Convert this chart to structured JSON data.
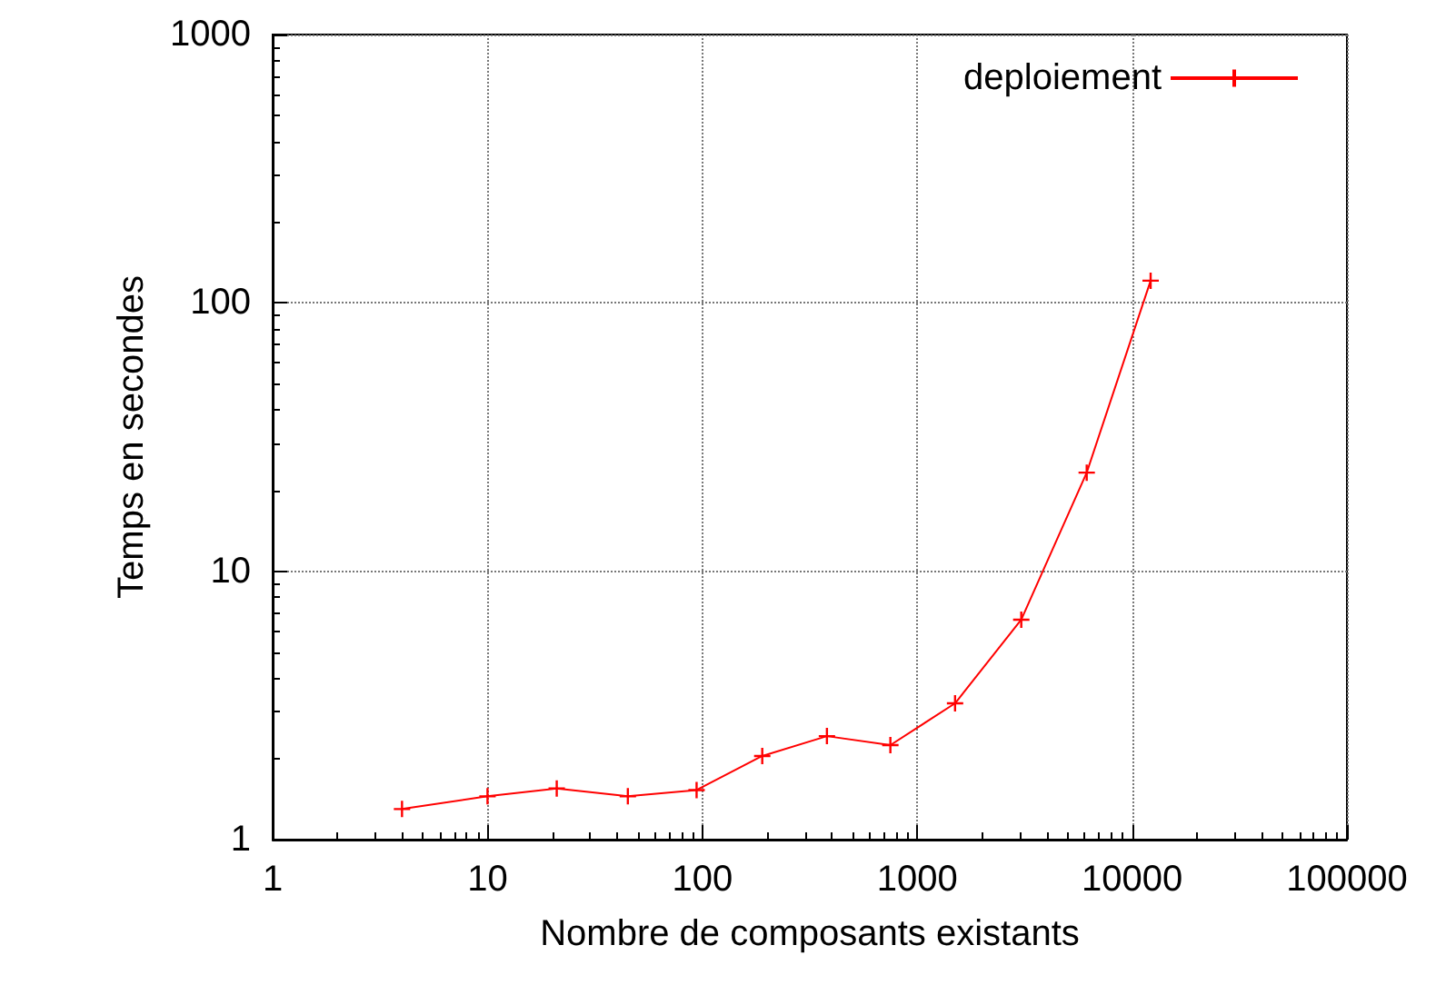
{
  "chart_data": {
    "type": "line",
    "xlabel": "Nombre de composants existants",
    "ylabel": "Temps en secondes",
    "log": "xy",
    "grid": true,
    "legend": "top right",
    "marker": "cross",
    "line_style": "solid",
    "xlim": [
      1,
      100000
    ],
    "xticks": [
      1,
      10,
      100,
      1000,
      10000,
      100000
    ],
    "ylim": [
      1,
      1000
    ],
    "yticks": [
      1,
      10,
      100,
      1000
    ],
    "series": [
      {
        "name": "deploiement",
        "color": "#ff0000",
        "x": [
          4,
          10,
          21,
          45,
          94,
          190,
          380,
          750,
          1500,
          3050,
          6150,
          12200
        ],
        "values": [
          1.3,
          1.45,
          1.55,
          1.45,
          1.53,
          2.05,
          2.43,
          2.25,
          3.22,
          6.6,
          23.3,
          121
        ]
      }
    ]
  }
}
